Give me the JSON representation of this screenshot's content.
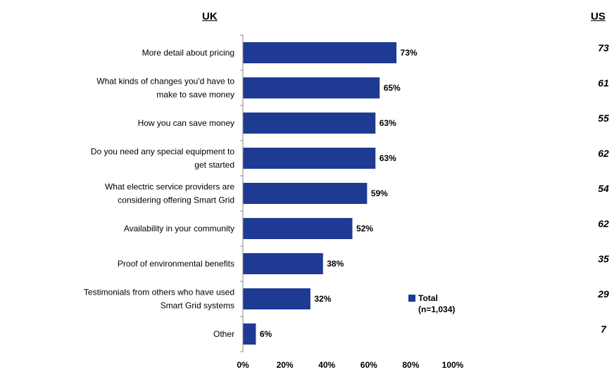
{
  "headers": {
    "left": "UK",
    "right": "US"
  },
  "chart_data": {
    "type": "bar",
    "orientation": "horizontal",
    "categories": [
      [
        "More detail about pricing"
      ],
      [
        "What kinds of changes you'd have to",
        "make to save money"
      ],
      [
        "How you can save money"
      ],
      [
        "Do you need any special equipment to",
        "get started"
      ],
      [
        "What electric service providers are",
        "considering offering Smart Grid"
      ],
      [
        "Availability in your community"
      ],
      [
        "Proof of environmental benefits"
      ],
      [
        "Testimonials from others who have used",
        "Smart Grid systems"
      ],
      [
        "Other"
      ]
    ],
    "series": [
      {
        "name": "Total",
        "values": [
          73,
          65,
          63,
          63,
          59,
          52,
          38,
          32,
          6
        ]
      }
    ],
    "data_labels": [
      "73%",
      "65%",
      "63%",
      "63%",
      "59%",
      "52%",
      "38%",
      "32%",
      "6%"
    ],
    "us_values": [
      "73",
      "61",
      "55",
      "62",
      "54",
      "62",
      "35",
      "29",
      "7"
    ],
    "legend": {
      "label": "Total",
      "sublabel": "(n=1,034)",
      "position": "bottom-right"
    },
    "x_ticks": [
      "0%",
      "20%",
      "40%",
      "60%",
      "80%",
      "100%"
    ],
    "xlim": [
      0,
      100
    ],
    "grid": false,
    "colors": {
      "bar": "#1f3a93",
      "axis": "#888888"
    }
  }
}
